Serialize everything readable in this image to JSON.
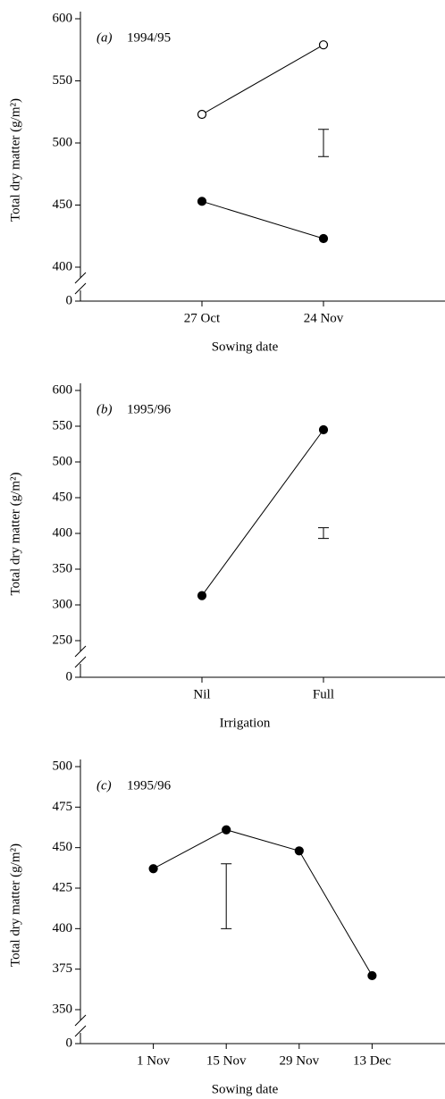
{
  "chart_data": [
    {
      "type": "line",
      "panel_label": "(a)",
      "subtitle": "1994/95",
      "categories": [
        "27 Oct",
        "24 Nov"
      ],
      "series": [
        {
          "color": "#000000",
          "marker": "open",
          "values": [
            523,
            579
          ]
        },
        {
          "color": "#000000",
          "marker": "filled",
          "values": [
            453,
            423
          ]
        }
      ],
      "error_bar": {
        "low": 489,
        "high": 511
      },
      "ylim": [
        400,
        600
      ],
      "yticks": [
        400,
        450,
        500,
        550,
        600
      ],
      "break_tick": 0,
      "xlabel": "Sowing date",
      "ylabel": "Total dry matter (g/m²)"
    },
    {
      "type": "line",
      "panel_label": "(b)",
      "subtitle": "1995/96",
      "categories": [
        "Nil",
        "Full"
      ],
      "series": [
        {
          "color": "#000000",
          "marker": "filled",
          "values": [
            313,
            545
          ]
        }
      ],
      "error_bar": {
        "low": 393,
        "high": 408
      },
      "ylim": [
        250,
        600
      ],
      "yticks": [
        250,
        300,
        350,
        400,
        450,
        500,
        550,
        600
      ],
      "break_tick": 0,
      "xlabel": "Irrigation",
      "ylabel": "Total dry matter (g/m²)"
    },
    {
      "type": "line",
      "panel_label": "(c)",
      "subtitle": "1995/96",
      "categories": [
        "1 Nov",
        "15 Nov",
        "29 Nov",
        "13 Dec"
      ],
      "series": [
        {
          "color": "#000000",
          "marker": "filled",
          "values": [
            437,
            461,
            448,
            371
          ]
        }
      ],
      "error_bar": {
        "low": 400,
        "high": 440
      },
      "ylim": [
        350,
        500
      ],
      "yticks": [
        350,
        375,
        400,
        425,
        450,
        475,
        500
      ],
      "break_tick": 0,
      "xlabel": "Sowing date",
      "ylabel": "Total dry matter (g/m²)"
    }
  ]
}
